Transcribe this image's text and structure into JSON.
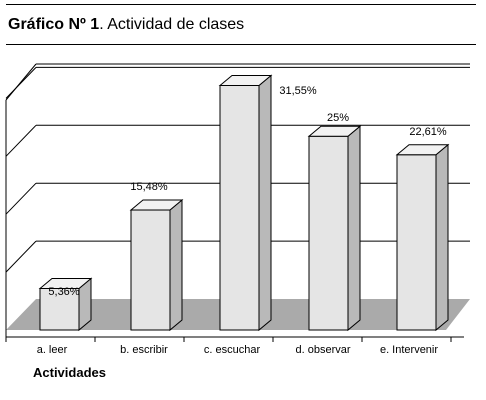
{
  "header": {
    "title_bold": "Gráfico Nº 1",
    "title_rest": ". Actividad de clases"
  },
  "chart_data": {
    "type": "bar",
    "style": "3d",
    "categories": [
      "a. leer",
      "b. escribir",
      "c. escuchar",
      "d. observar",
      "e. Intervenir"
    ],
    "values": [
      5.36,
      15.48,
      31.55,
      25,
      22.61
    ],
    "labels": [
      "5,36%",
      "15,48%",
      "31,55%",
      "25%",
      "22,61%"
    ],
    "title": "",
    "xlabel": "Actividades",
    "ylabel": "",
    "ylim": [
      0,
      35
    ],
    "grid": true,
    "legend": "none",
    "colors": {
      "bar_front": "#e5e5e5",
      "bar_side": "#b9b9b9",
      "bar_top": "#f2f2f2",
      "floor": "#aaaaaa",
      "grid": "#000000"
    }
  }
}
